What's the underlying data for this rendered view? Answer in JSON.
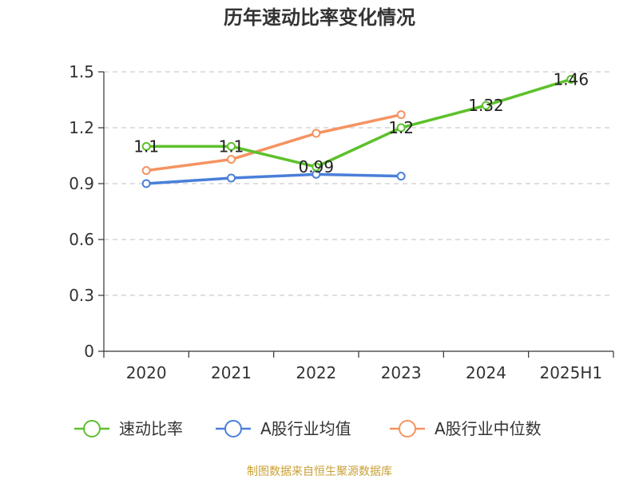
{
  "chart_data": {
    "type": "line",
    "title": "历年速动比率变化情况",
    "categories": [
      "2020",
      "2021",
      "2022",
      "2023",
      "2024",
      "2025H1"
    ],
    "ylim": [
      0,
      1.5
    ],
    "yticks": [
      "0",
      "0.3",
      "0.6",
      "0.9",
      "1.2",
      "1.5"
    ],
    "grid": true,
    "legend_position": "bottom",
    "series": [
      {
        "name": "速动比率",
        "color": "#5dc12b",
        "values": [
          1.1,
          1.1,
          0.99,
          1.2,
          1.32,
          1.46
        ],
        "labels": [
          "1.1",
          "1.1",
          "0.99",
          "1.2",
          "1.32",
          "1.46"
        ]
      },
      {
        "name": "A股行业均值",
        "color": "#4a7fd9",
        "values": [
          0.9,
          0.93,
          0.95,
          0.94,
          null,
          null
        ]
      },
      {
        "name": "A股行业中位数",
        "color": "#f59361",
        "values": [
          0.97,
          1.03,
          1.17,
          1.27,
          null,
          null
        ]
      }
    ],
    "source": "制图数据来自恒生聚源数据库",
    "source_color": "#c8a033"
  }
}
